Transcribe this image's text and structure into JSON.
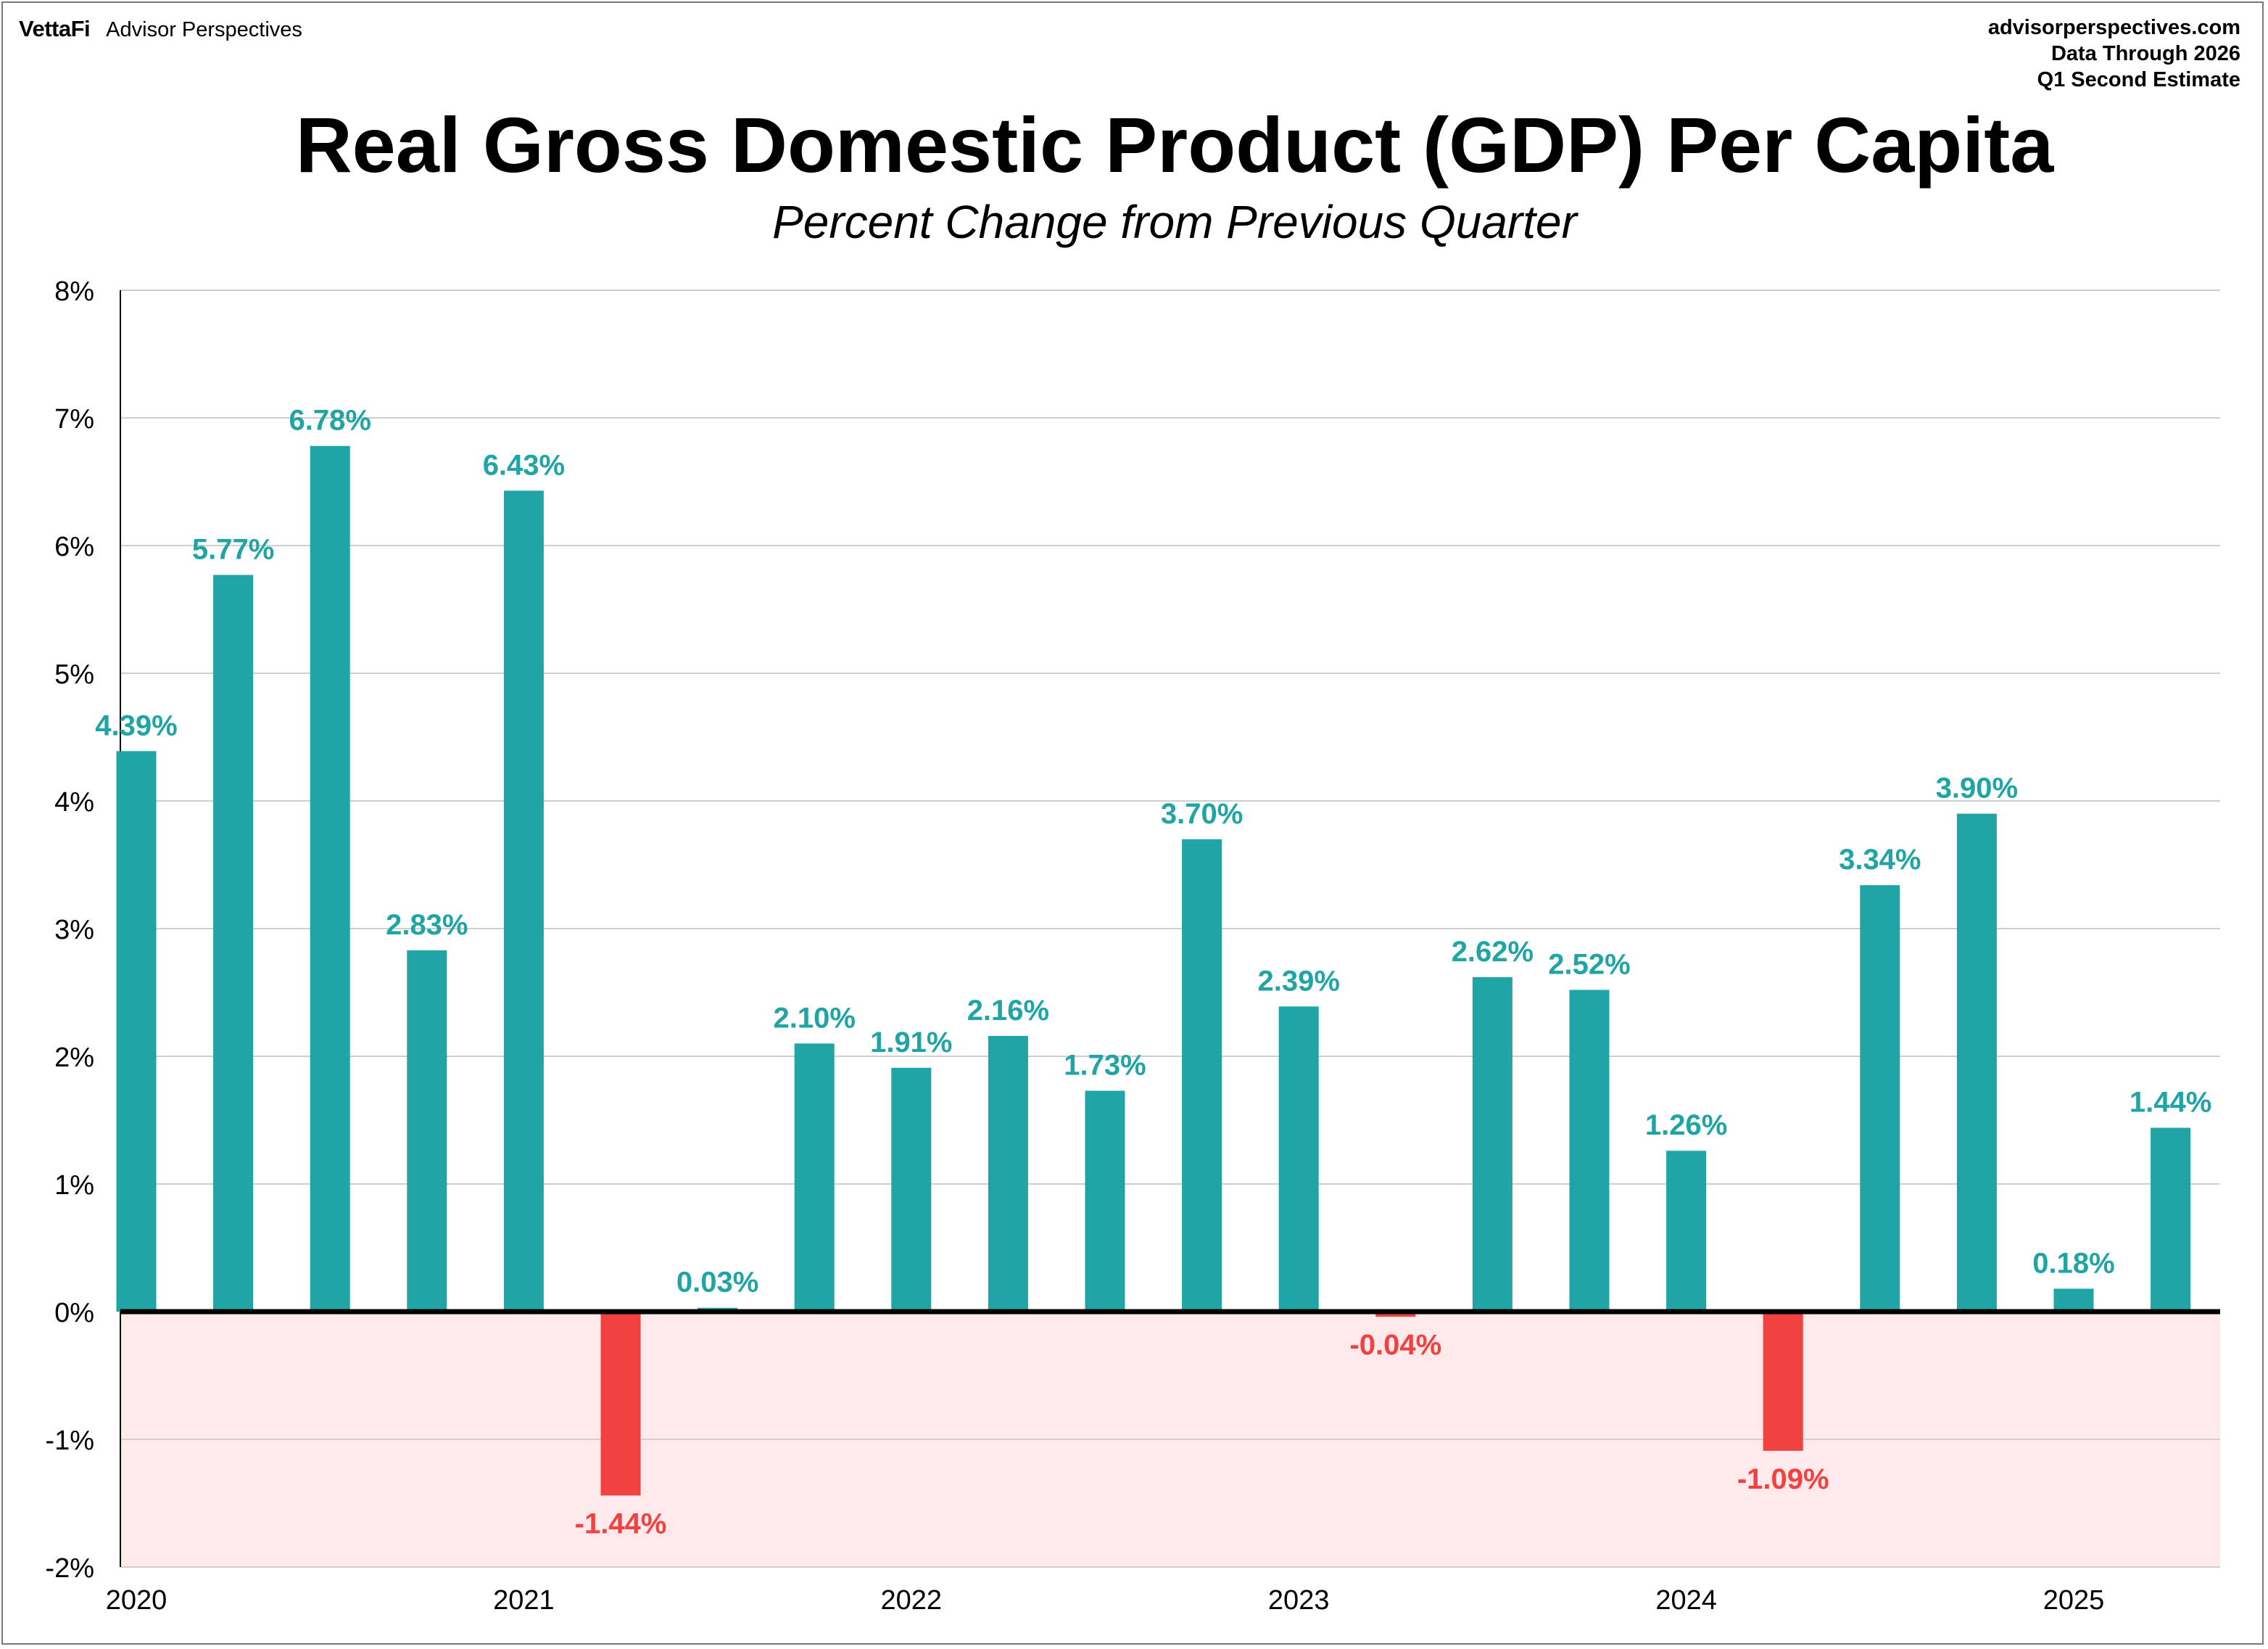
{
  "header": {
    "logo_text": "VettaFi",
    "brand_text": "Advisor Perspectives",
    "source_lines": [
      "advisorperspectives.com",
      "Data Through 2026",
      "Q1 Second Estimate"
    ]
  },
  "colors": {
    "positive": "#20A4A6",
    "negative": "#F04240",
    "negative_zone": "#FFE9EA",
    "grid": "#CFCFCF"
  },
  "chart_data": {
    "type": "bar",
    "title": "Real Gross Domestic Product (GDP) Per Capita",
    "subtitle": "Percent Change from Previous Quarter",
    "xlabel": "",
    "ylabel": "",
    "ylim": [
      -2,
      8
    ],
    "yticks": [
      "8%",
      "7%",
      "6%",
      "5%",
      "4%",
      "3%",
      "2%",
      "1%",
      "0%",
      "-1%",
      "-2%"
    ],
    "ytick_values": [
      8,
      7,
      6,
      5,
      4,
      3,
      2,
      1,
      0,
      -1,
      -2
    ],
    "xtick_labels": [
      "2020",
      "2021",
      "2022",
      "2023",
      "2024",
      "2025"
    ],
    "grid": true,
    "values": [
      4.39,
      5.77,
      6.78,
      2.83,
      6.43,
      -1.44,
      0.03,
      2.1,
      1.91,
      2.16,
      1.73,
      3.7,
      2.39,
      -0.04,
      2.62,
      2.52,
      1.26,
      -1.09,
      3.34,
      3.9,
      0.18,
      1.44
    ],
    "labels": [
      "4.39%",
      "5.77%",
      "6.78%",
      "2.83%",
      "6.43%",
      "-1.44%",
      "0.03%",
      "2.10%",
      "1.91%",
      "2.16%",
      "1.73%",
      "3.70%",
      "2.39%",
      "-0.04%",
      "2.62%",
      "2.52%",
      "1.26%",
      "-1.09%",
      "3.34%",
      "3.90%",
      "0.18%",
      "1.44%"
    ]
  }
}
